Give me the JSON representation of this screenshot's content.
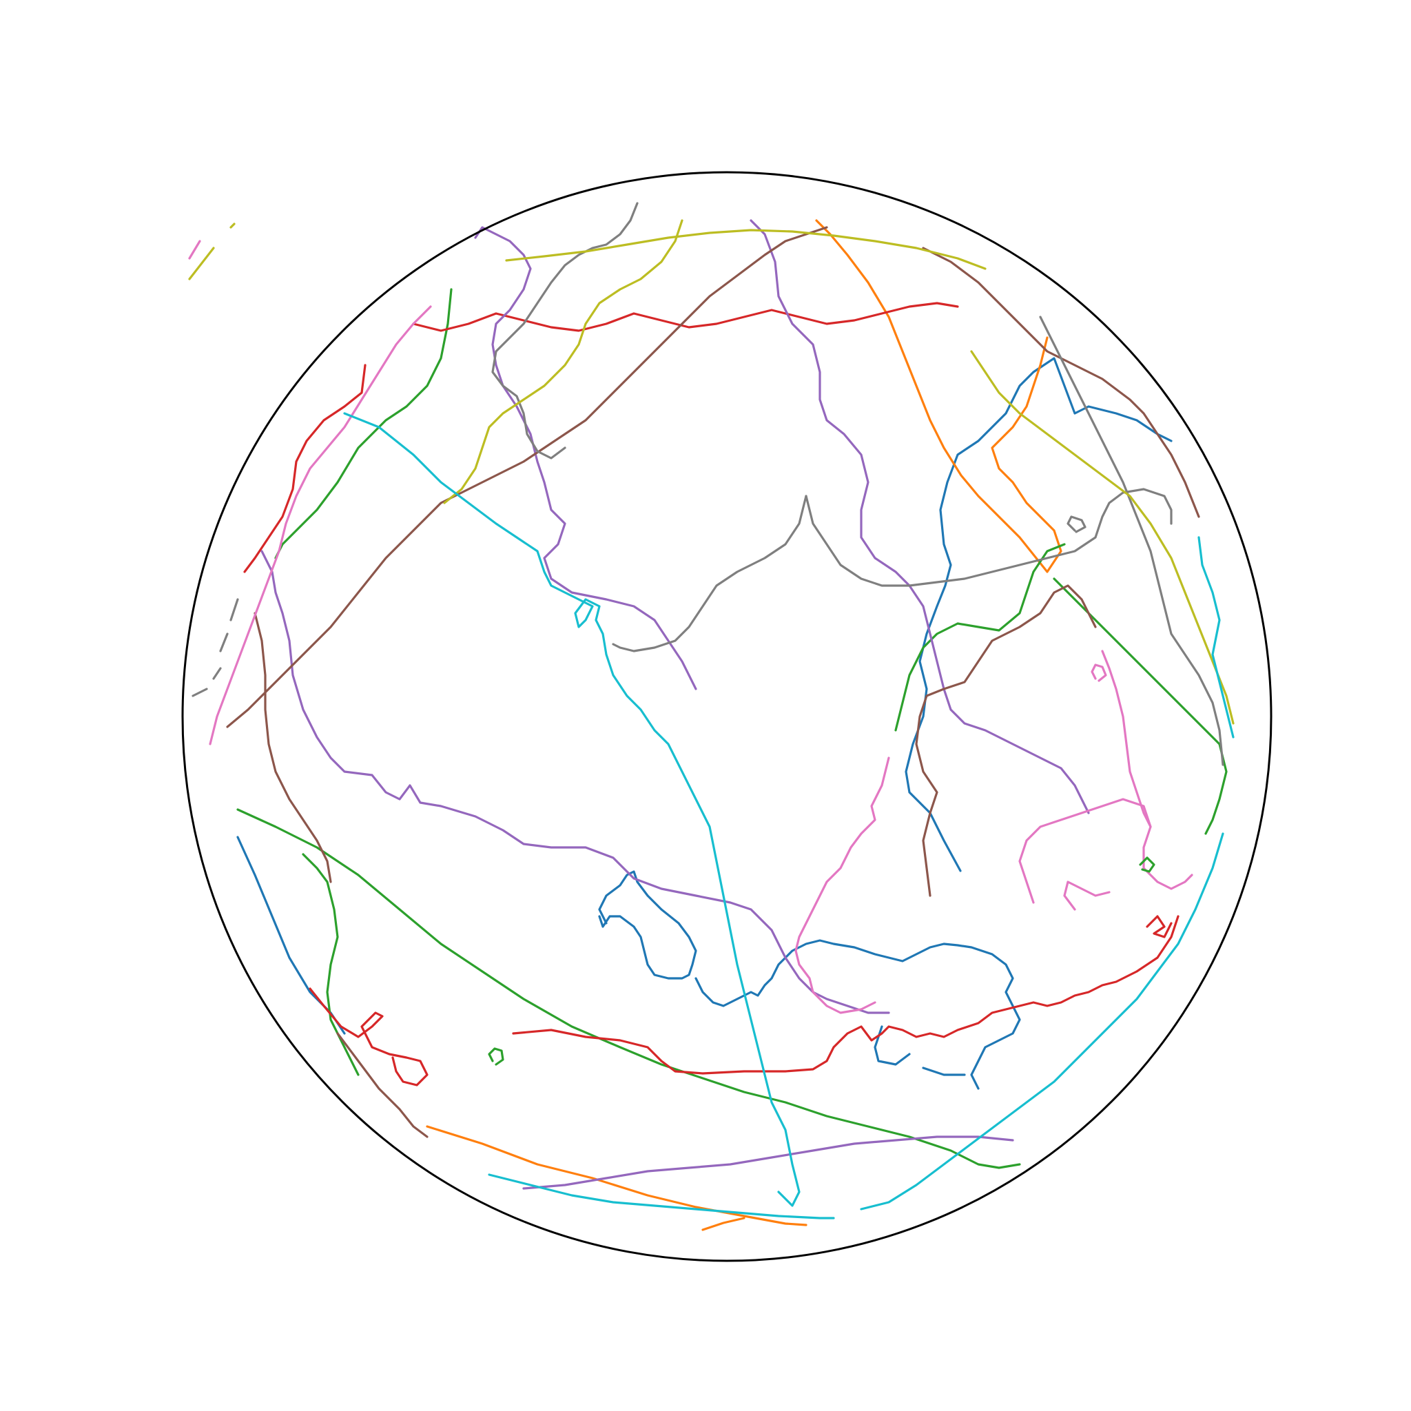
{
  "map": {
    "projection": "orthographic",
    "globe_outline_color": "#000000",
    "background_color": "#ffffff",
    "labels": [],
    "legend": null
  },
  "palette": [
    "#1f77b4",
    "#ff7f0e",
    "#2ca02c",
    "#d62728",
    "#9467bd",
    "#8c564b",
    "#e377c2",
    "#7f7f7f",
    "#bcbd22",
    "#17becf"
  ],
  "tracks": [
    {
      "id": "track-blue-1",
      "color": "#1f77b4"
    },
    {
      "id": "track-blue-2",
      "color": "#1f77b4"
    },
    {
      "id": "track-blue-3",
      "color": "#1f77b4"
    },
    {
      "id": "track-orange-1",
      "color": "#ff7f0e"
    },
    {
      "id": "track-orange-2",
      "color": "#ff7f0e"
    },
    {
      "id": "track-green-1",
      "color": "#2ca02c"
    },
    {
      "id": "track-green-2",
      "color": "#2ca02c"
    },
    {
      "id": "track-green-3",
      "color": "#2ca02c"
    },
    {
      "id": "track-green-4",
      "color": "#2ca02c"
    },
    {
      "id": "track-green-5",
      "color": "#2ca02c"
    },
    {
      "id": "track-red-1",
      "color": "#d62728"
    },
    {
      "id": "track-red-2",
      "color": "#d62728"
    },
    {
      "id": "track-red-3",
      "color": "#d62728"
    },
    {
      "id": "track-red-4",
      "color": "#d62728"
    },
    {
      "id": "track-purple-1",
      "color": "#9467bd"
    },
    {
      "id": "track-purple-2",
      "color": "#9467bd"
    },
    {
      "id": "track-purple-3",
      "color": "#9467bd"
    },
    {
      "id": "track-purple-4",
      "color": "#9467bd"
    },
    {
      "id": "track-brown-1",
      "color": "#8c564b"
    },
    {
      "id": "track-brown-2",
      "color": "#8c564b"
    },
    {
      "id": "track-brown-3",
      "color": "#8c564b"
    },
    {
      "id": "track-brown-4",
      "color": "#8c564b"
    },
    {
      "id": "track-brown-5",
      "color": "#8c564b"
    },
    {
      "id": "track-pink-1",
      "color": "#e377c2"
    },
    {
      "id": "track-pink-2",
      "color": "#e377c2"
    },
    {
      "id": "track-pink-3",
      "color": "#e377c2"
    },
    {
      "id": "track-pink-4",
      "color": "#e377c2"
    },
    {
      "id": "track-gray-1",
      "color": "#7f7f7f"
    },
    {
      "id": "track-gray-2",
      "color": "#7f7f7f"
    },
    {
      "id": "track-gray-3",
      "color": "#7f7f7f"
    },
    {
      "id": "track-gray-4",
      "color": "#7f7f7f"
    },
    {
      "id": "track-olive-1",
      "color": "#bcbd22"
    },
    {
      "id": "track-olive-2",
      "color": "#bcbd22"
    },
    {
      "id": "track-olive-3",
      "color": "#bcbd22"
    },
    {
      "id": "track-cyan-1",
      "color": "#17becf"
    },
    {
      "id": "track-cyan-2",
      "color": "#17becf"
    },
    {
      "id": "track-cyan-3",
      "color": "#17becf"
    },
    {
      "id": "track-cyan-4",
      "color": "#17becf"
    }
  ]
}
